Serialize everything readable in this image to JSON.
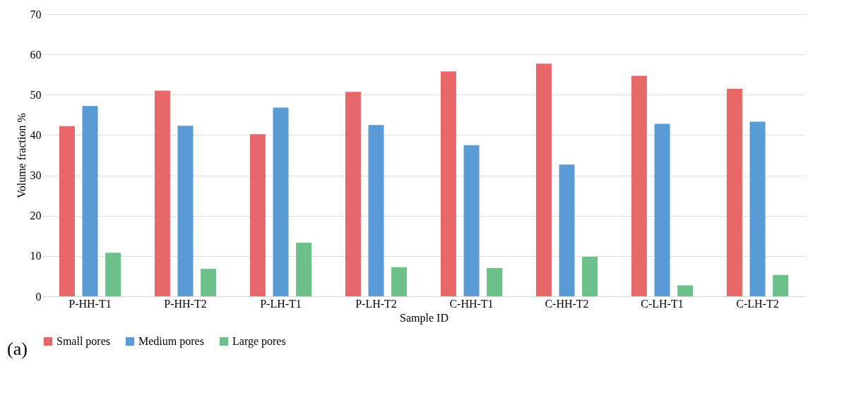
{
  "chart_data": {
    "type": "bar",
    "xlabel": "Sample ID",
    "ylabel": "Volume fraction %",
    "categories": [
      "P-HH-T1",
      "P-HH-T2",
      "P-LH-T1",
      "P-LH-T2",
      "C-HH-T1",
      "C-HH-T2",
      "C-LH-T1",
      "C-LH-T2"
    ],
    "series": [
      {
        "name": "Small pores",
        "color": "#e8686a",
        "values": [
          42.2,
          51,
          40.2,
          50.7,
          55.8,
          57.7,
          54.7,
          51.5
        ]
      },
      {
        "name": "Medium pores",
        "color": "#5b9bd5",
        "values": [
          47.2,
          42.3,
          46.8,
          42.5,
          37.5,
          32.7,
          42.8,
          43.3
        ]
      },
      {
        "name": "Large pores",
        "color": "#6cc18b",
        "values": [
          10.8,
          6.8,
          13.3,
          7.2,
          7,
          9.8,
          2.7,
          5.3
        ]
      }
    ],
    "ylim": [
      0,
      70
    ],
    "yticks": [
      0,
      10,
      20,
      30,
      40,
      50,
      60,
      70
    ],
    "grid": "y",
    "legend": "bottom",
    "annotations": [
      "(a)"
    ]
  }
}
